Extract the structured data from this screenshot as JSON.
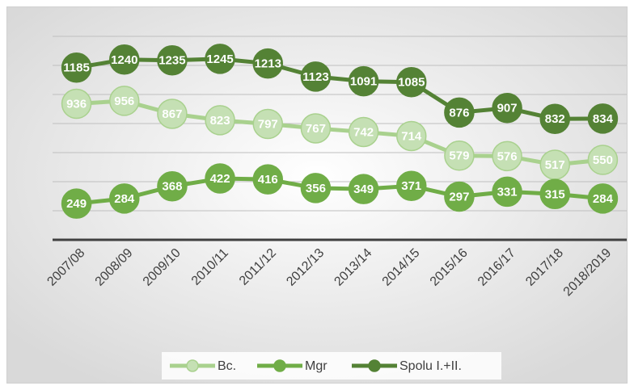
{
  "chart_data": {
    "type": "line",
    "categories": [
      "2007/08",
      "2008/09",
      "2009/10",
      "2010/11",
      "2011/12",
      "2012/13",
      "2013/14",
      "2014/15",
      "2015/16",
      "2016/17",
      "2017/18",
      "2018/2019"
    ],
    "series": [
      {
        "name": "Bc.",
        "color": "#a9d18e",
        "values": [
          936,
          956,
          867,
          823,
          797,
          767,
          742,
          714,
          579,
          576,
          517,
          550
        ]
      },
      {
        "name": "Mgr",
        "color": "#70ad47",
        "values": [
          249,
          284,
          368,
          422,
          416,
          356,
          349,
          371,
          297,
          331,
          315,
          284
        ]
      },
      {
        "name": "Spolu I.+II.",
        "color": "#548235",
        "values": [
          1185,
          1240,
          1235,
          1245,
          1213,
          1123,
          1091,
          1085,
          876,
          907,
          832,
          834
        ]
      }
    ],
    "ylim": [
      0,
      1400
    ],
    "yticks": [
      0,
      200,
      400,
      600,
      800,
      1000,
      1200,
      1400
    ],
    "grid": true,
    "legend": "bottom"
  }
}
